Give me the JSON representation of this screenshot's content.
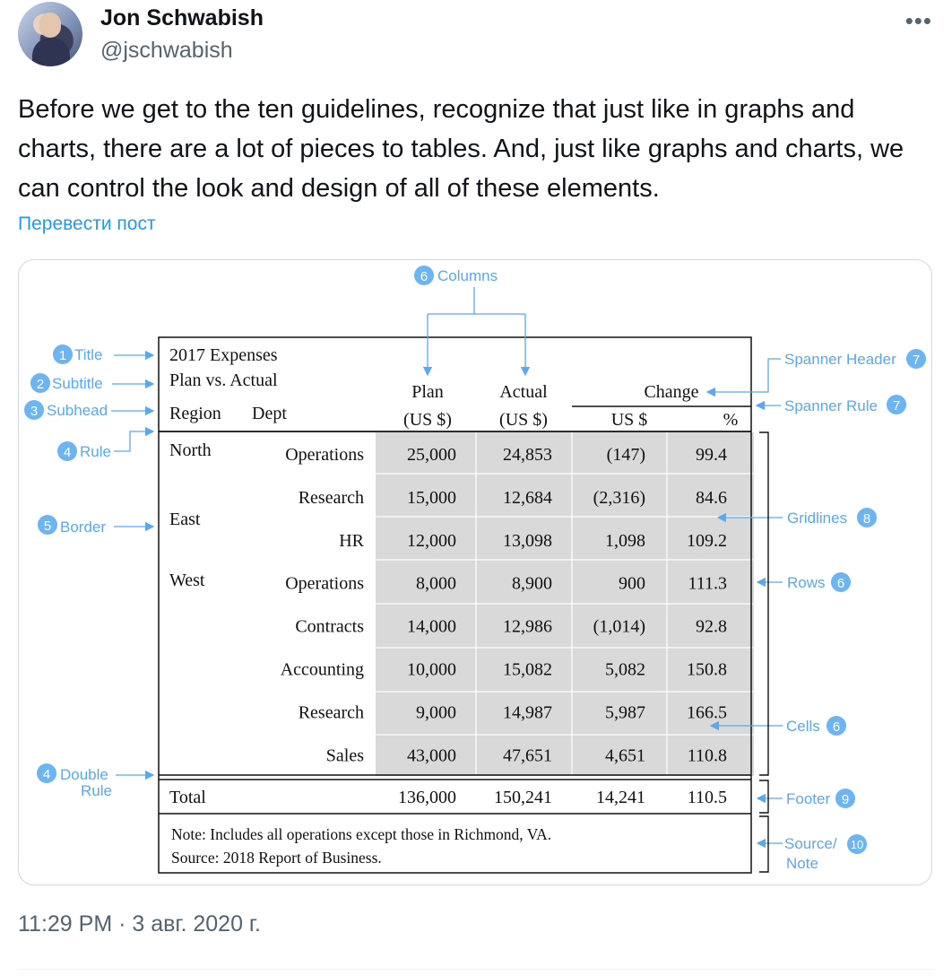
{
  "author": {
    "name": "Jon Schwabish",
    "handle": "@jschwabish"
  },
  "menu_icon": "more-horizontal-icon",
  "tweet_text": "Before we get to the ten guidelines, recognize that just like in graphs and charts, there are a lot of pieces to tables. And, just like graphs and charts, we can control the look and design of all of these elements.",
  "translate_label": "Перевести пост",
  "timestamp": "11:29 PM · 3 авг. 2020 г.",
  "colors": {
    "accent": "#1d9bf0",
    "annotation": "#5aa8f0",
    "badge": "#6cb4f2",
    "cell_fill": "#d9d9d9"
  },
  "table": {
    "title": "2017 Expenses",
    "subtitle": "Plan vs. Actual",
    "subhead_region": "Region",
    "subhead_dept": "Dept",
    "col_plan": "Plan",
    "col_actual": "Actual",
    "unit": "(US $)",
    "spanner": "Change",
    "change_usd": "US $",
    "change_pct": "%",
    "rows": [
      {
        "region": "North",
        "dept": "Operations",
        "plan": "25,000",
        "actual": "24,853",
        "usd": "(147)",
        "pct": "99.4"
      },
      {
        "region": "",
        "dept": "Research",
        "plan": "15,000",
        "actual": "12,684",
        "usd": "(2,316)",
        "pct": "84.6"
      },
      {
        "region": "East",
        "dept": "HR",
        "plan": "12,000",
        "actual": "13,098",
        "usd": "1,098",
        "pct": "109.2"
      },
      {
        "region": "West",
        "dept": "Operations",
        "plan": "8,000",
        "actual": "8,900",
        "usd": "900",
        "pct": "111.3"
      },
      {
        "region": "",
        "dept": "Contracts",
        "plan": "14,000",
        "actual": "12,986",
        "usd": "(1,014)",
        "pct": "92.8"
      },
      {
        "region": "",
        "dept": "Accounting",
        "plan": "10,000",
        "actual": "15,082",
        "usd": "5,082",
        "pct": "150.8"
      },
      {
        "region": "",
        "dept": "Research",
        "plan": "9,000",
        "actual": "14,987",
        "usd": "5,987",
        "pct": "166.5"
      },
      {
        "region": "",
        "dept": "Sales",
        "plan": "43,000",
        "actual": "47,651",
        "usd": "4,651",
        "pct": "110.8"
      }
    ],
    "total": {
      "label": "Total",
      "plan": "136,000",
      "actual": "150,241",
      "usd": "14,241",
      "pct": "110.5"
    },
    "note": "Note: Includes all operations except those in Richmond, VA.",
    "source": "Source: 2018 Report of Business."
  },
  "annotations": {
    "columns": {
      "num": "6",
      "text": "Columns"
    },
    "title": {
      "num": "1",
      "text": "Title"
    },
    "subtitle": {
      "num": "2",
      "text": "Subtitle"
    },
    "subhead": {
      "num": "3",
      "text": "Subhead"
    },
    "rule": {
      "num": "4",
      "text": "Rule"
    },
    "border": {
      "num": "5",
      "text": "Border"
    },
    "double_rule": {
      "num": "4",
      "line1": "Double",
      "line2": "Rule"
    },
    "spanner_header": {
      "num": "7",
      "text": "Spanner Header"
    },
    "spanner_rule": {
      "num": "7",
      "text": "Spanner Rule"
    },
    "gridlines": {
      "num": "8",
      "text": "Gridlines"
    },
    "rows": {
      "num": "6",
      "text": "Rows"
    },
    "cells": {
      "num": "6",
      "text": "Cells"
    },
    "footer": {
      "num": "9",
      "text": "Footer"
    },
    "source_note": {
      "num": "10",
      "line1": "Source/",
      "line2": "Note"
    }
  }
}
